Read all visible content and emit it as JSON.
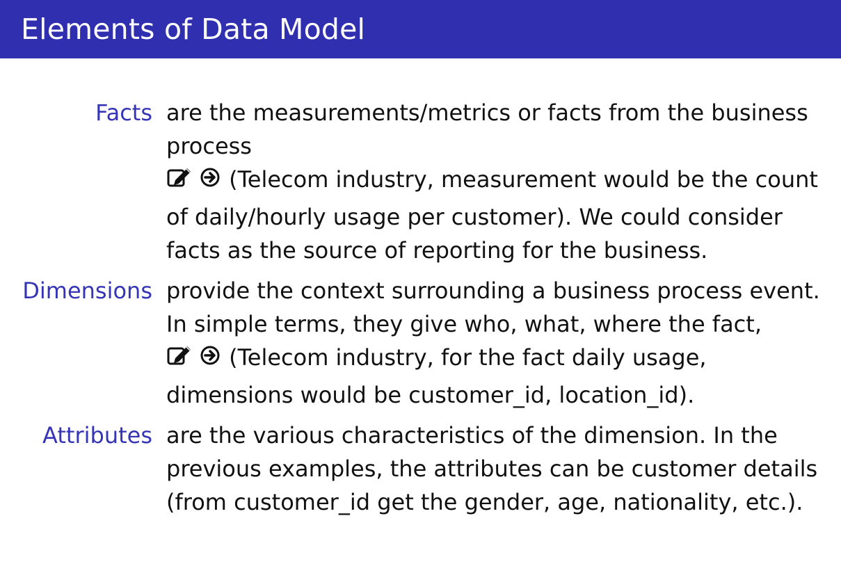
{
  "slide": {
    "title": "Elements of Data Model"
  },
  "colors": {
    "title_bar": "#2f2fb0",
    "title_text": "#ffffff",
    "term": "#3535b5",
    "body_text": "#111111"
  },
  "definitions": [
    {
      "term": "Facts",
      "lines": [
        "are the measurements/metrics or facts from the business",
        "process",
        "(Telecom industry, measurement would be the count",
        "of daily/hourly usage per customer). We could consider",
        "facts as the source of reporting for the business."
      ],
      "icons": [
        "edit-icon",
        "arrow-circle-right-icon"
      ]
    },
    {
      "term": "Dimensions",
      "lines": [
        "provide the context surrounding a business process event.",
        "In simple terms, they give who, what, where the fact,",
        "(Telecom industry, for the fact daily usage,",
        "dimensions would be customer_id, location_id)."
      ],
      "icons": [
        "edit-icon",
        "arrow-circle-right-icon"
      ]
    },
    {
      "term": "Attributes",
      "lines": [
        "are the various characteristics of the dimension. In the",
        "previous examples, the attributes can be customer details",
        "(from customer_id get the gender, age, nationality, etc.)."
      ]
    }
  ]
}
